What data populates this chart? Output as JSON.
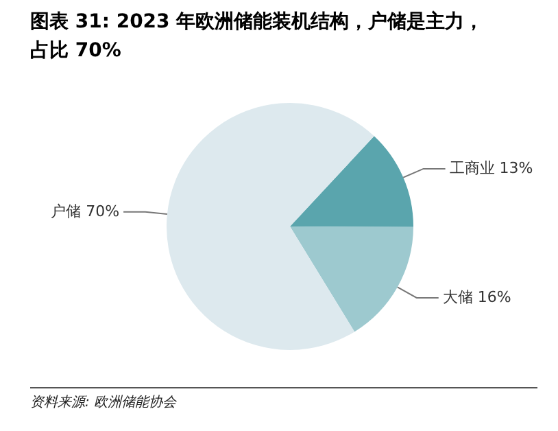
{
  "chart_data": {
    "type": "pie",
    "title": "图表 31: 2023 年欧洲储能装机结构，户储是主力，占比 70%",
    "categories": [
      "工商业",
      "大储",
      "户储"
    ],
    "values": [
      13,
      16,
      70
    ],
    "value_labels": [
      "13%",
      "16%",
      "70%"
    ],
    "colors": [
      "#5aa5ad",
      "#9dc9cf",
      "#dde9ee"
    ],
    "legend": false,
    "annotations": [
      "资料来源: 欧洲储能协会"
    ]
  }
}
